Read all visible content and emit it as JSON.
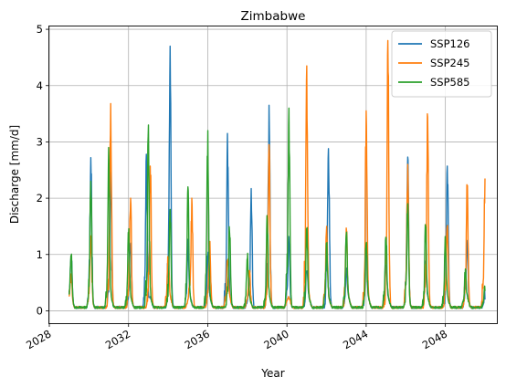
{
  "chart_data": {
    "type": "line",
    "title": "Zimbabwe",
    "xlabel": "Year",
    "ylabel": "Discharge [mm/d]",
    "xlim": [
      "2028",
      "2050.6"
    ],
    "ylim": [
      -0.22,
      5.05
    ],
    "x_ticks": [
      "2028",
      "2032",
      "2036",
      "2040",
      "2044",
      "2048"
    ],
    "y_ticks": [
      "0",
      "1",
      "2",
      "3",
      "4",
      "5"
    ],
    "grid": true,
    "legend_position": "top-right",
    "x_data_start": "2029.0",
    "x_data_end": "2050.0",
    "series": [
      {
        "name": "SSP126",
        "color": "#1f77b4",
        "annual_peaks": [
          {
            "date": "2029.1",
            "value": 0.9
          },
          {
            "date": "2030.1",
            "value": 2.72
          },
          {
            "date": "2031.1",
            "value": 2.42
          },
          {
            "date": "2032.1",
            "value": 1.1
          },
          {
            "date": "2032.9",
            "value": 2.78
          },
          {
            "date": "2034.1",
            "value": 4.7
          },
          {
            "date": "2035.0",
            "value": 1.15
          },
          {
            "date": "2036.0",
            "value": 0.95
          },
          {
            "date": "2037.0",
            "value": 3.15
          },
          {
            "date": "2038.2",
            "value": 2.17
          },
          {
            "date": "2039.1",
            "value": 3.65
          },
          {
            "date": "2040.1",
            "value": 1.2
          },
          {
            "date": "2041.0",
            "value": 0.7
          },
          {
            "date": "2042.1",
            "value": 2.88
          },
          {
            "date": "2043.0",
            "value": 0.6
          },
          {
            "date": "2044.0",
            "value": 1.1
          },
          {
            "date": "2045.0",
            "value": 0.8
          },
          {
            "date": "2046.1",
            "value": 2.73
          },
          {
            "date": "2047.0",
            "value": 0.8
          },
          {
            "date": "2048.1",
            "value": 2.57
          },
          {
            "date": "2049.1",
            "value": 1.15
          },
          {
            "date": "2050.0",
            "value": 0.2
          }
        ]
      },
      {
        "name": "SSP245",
        "color": "#ff7f0e",
        "annual_peaks": [
          {
            "date": "2029.1",
            "value": 0.5
          },
          {
            "date": "2030.1",
            "value": 1.2
          },
          {
            "date": "2031.1",
            "value": 3.68
          },
          {
            "date": "2032.1",
            "value": 2.0
          },
          {
            "date": "2033.1",
            "value": 2.57
          },
          {
            "date": "2034.0",
            "value": 0.9
          },
          {
            "date": "2035.2",
            "value": 2.0
          },
          {
            "date": "2036.1",
            "value": 1.1
          },
          {
            "date": "2037.0",
            "value": 0.9
          },
          {
            "date": "2038.1",
            "value": 0.6
          },
          {
            "date": "2039.1",
            "value": 2.95
          },
          {
            "date": "2041.0",
            "value": 4.35
          },
          {
            "date": "2042.0",
            "value": 1.5
          },
          {
            "date": "2043.0",
            "value": 1.47
          },
          {
            "date": "2044.0",
            "value": 3.55
          },
          {
            "date": "2045.1",
            "value": 4.8
          },
          {
            "date": "2046.1",
            "value": 2.6
          },
          {
            "date": "2047.1",
            "value": 3.44
          },
          {
            "date": "2048.1",
            "value": 1.5
          },
          {
            "date": "2049.1",
            "value": 2.13
          },
          {
            "date": "2050.0",
            "value": 2.35
          }
        ]
      },
      {
        "name": "SSP585",
        "color": "#2ca02c",
        "annual_peaks": [
          {
            "date": "2029.1",
            "value": 0.93
          },
          {
            "date": "2030.1",
            "value": 2.3
          },
          {
            "date": "2031.0",
            "value": 2.9
          },
          {
            "date": "2032.0",
            "value": 1.35
          },
          {
            "date": "2033.0",
            "value": 3.3
          },
          {
            "date": "2034.1",
            "value": 1.8
          },
          {
            "date": "2035.0",
            "value": 2.2
          },
          {
            "date": "2036.0",
            "value": 3.2
          },
          {
            "date": "2037.1",
            "value": 1.4
          },
          {
            "date": "2038.0",
            "value": 0.9
          },
          {
            "date": "2039.0",
            "value": 1.6
          },
          {
            "date": "2040.1",
            "value": 3.6
          },
          {
            "date": "2041.0",
            "value": 1.4
          },
          {
            "date": "2042.0",
            "value": 1.1
          },
          {
            "date": "2043.0",
            "value": 1.35
          },
          {
            "date": "2044.0",
            "value": 1.2
          },
          {
            "date": "2045.0",
            "value": 1.3
          },
          {
            "date": "2046.1",
            "value": 1.9
          },
          {
            "date": "2047.0",
            "value": 1.5
          },
          {
            "date": "2048.0",
            "value": 1.2
          },
          {
            "date": "2049.0",
            "value": 0.6
          },
          {
            "date": "2050.0",
            "value": 0.35
          }
        ]
      }
    ]
  }
}
